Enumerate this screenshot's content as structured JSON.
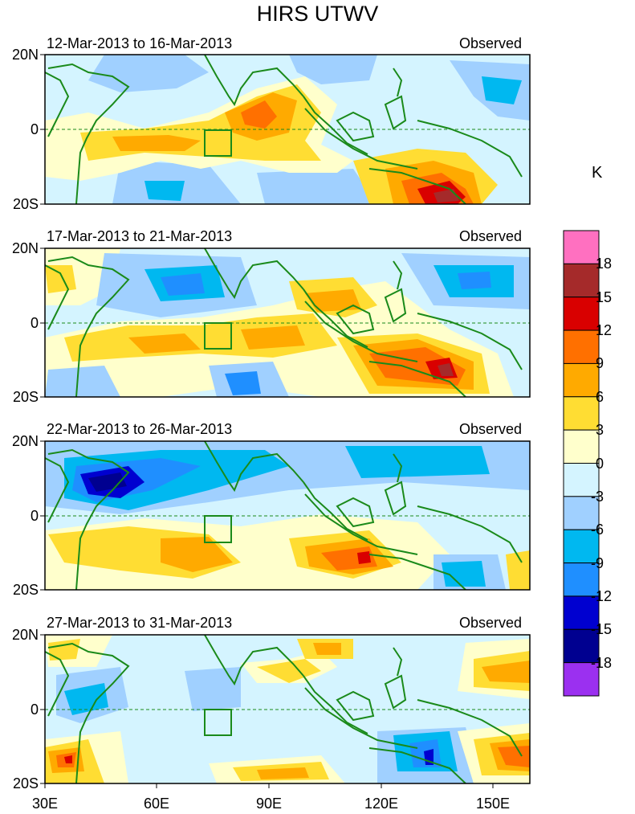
{
  "title": "HIRS UTWV",
  "source_label": "Observed",
  "panels": [
    {
      "dates": "12-Mar-2013 to 16-Mar-2013",
      "id": "p1"
    },
    {
      "dates": "17-Mar-2013 to 21-Mar-2013",
      "id": "p2"
    },
    {
      "dates": "22-Mar-2013 to 26-Mar-2013",
      "id": "p3"
    },
    {
      "dates": "27-Mar-2013 to 31-Mar-2013",
      "id": "p4"
    }
  ],
  "lat_labels": {
    "north": "20N",
    "equator": "0",
    "south": "20S"
  },
  "lon_labels": [
    "30E",
    "60E",
    "90E",
    "120E",
    "150E"
  ],
  "colorbar": {
    "unit": "K",
    "levels": [
      "18",
      "15",
      "12",
      "9",
      "6",
      "3",
      "0",
      "-3",
      "-6",
      "-9",
      "-12",
      "-15",
      "-18"
    ],
    "colors": [
      "#ff70c0",
      "#a52a2a",
      "#d90000",
      "#ff7000",
      "#ffaa00",
      "#ffdd33",
      "#ffffcc",
      "#d4f4ff",
      "#a0d0ff",
      "#00b8f0",
      "#1f8fff",
      "#0000d0",
      "#000090",
      "#9b30f0"
    ]
  }
}
